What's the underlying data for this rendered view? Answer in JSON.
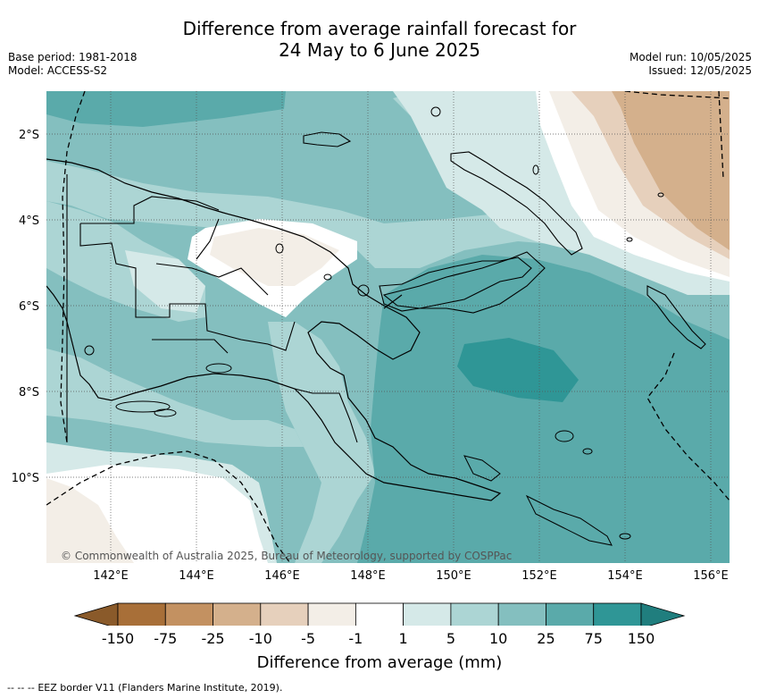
{
  "header": {
    "title_line1": "Difference from average rainfall forecast for",
    "title_line2": "24 May to 6 June 2025",
    "base_period": "Base period: 1981-2018",
    "model": "Model: ACCESS-S2",
    "model_run": "Model run: 10/05/2025",
    "issued": "Issued: 12/05/2025"
  },
  "map": {
    "lat_labels": [
      "2°S",
      "4°S",
      "6°S",
      "8°S",
      "10°S"
    ],
    "lon_labels": [
      "142°E",
      "144°E",
      "146°E",
      "148°E",
      "150°E",
      "152°E",
      "154°E",
      "156°E"
    ],
    "lon_range": [
      140.5,
      156.5
    ],
    "lat_range": [
      -12.0,
      -1.0
    ],
    "copyright": "© Commonwealth of Australia 2025, Bureau of Meteorology, supported by COSPPac"
  },
  "colorbar": {
    "title": "Difference from average (mm)",
    "tick_labels": [
      "-150",
      "-75",
      "-25",
      "-10",
      "-5",
      "-1",
      "1",
      "5",
      "10",
      "25",
      "75",
      "150"
    ],
    "colors": {
      "below_min": "#8a5a2a",
      "bins": [
        "#a86f38",
        "#c39161",
        "#d4b08c",
        "#e6d0bc",
        "#f3eee7",
        "#ffffff",
        "#d5e9e8",
        "#acd5d4",
        "#84bfbf",
        "#5aaaaa",
        "#2f9696"
      ],
      "above_max": "#207e7e"
    }
  },
  "legend": {
    "eez_symbol": "-- -- --",
    "eez_text": "EEZ border V11 (Flanders Marine Institute, 2019)."
  }
}
